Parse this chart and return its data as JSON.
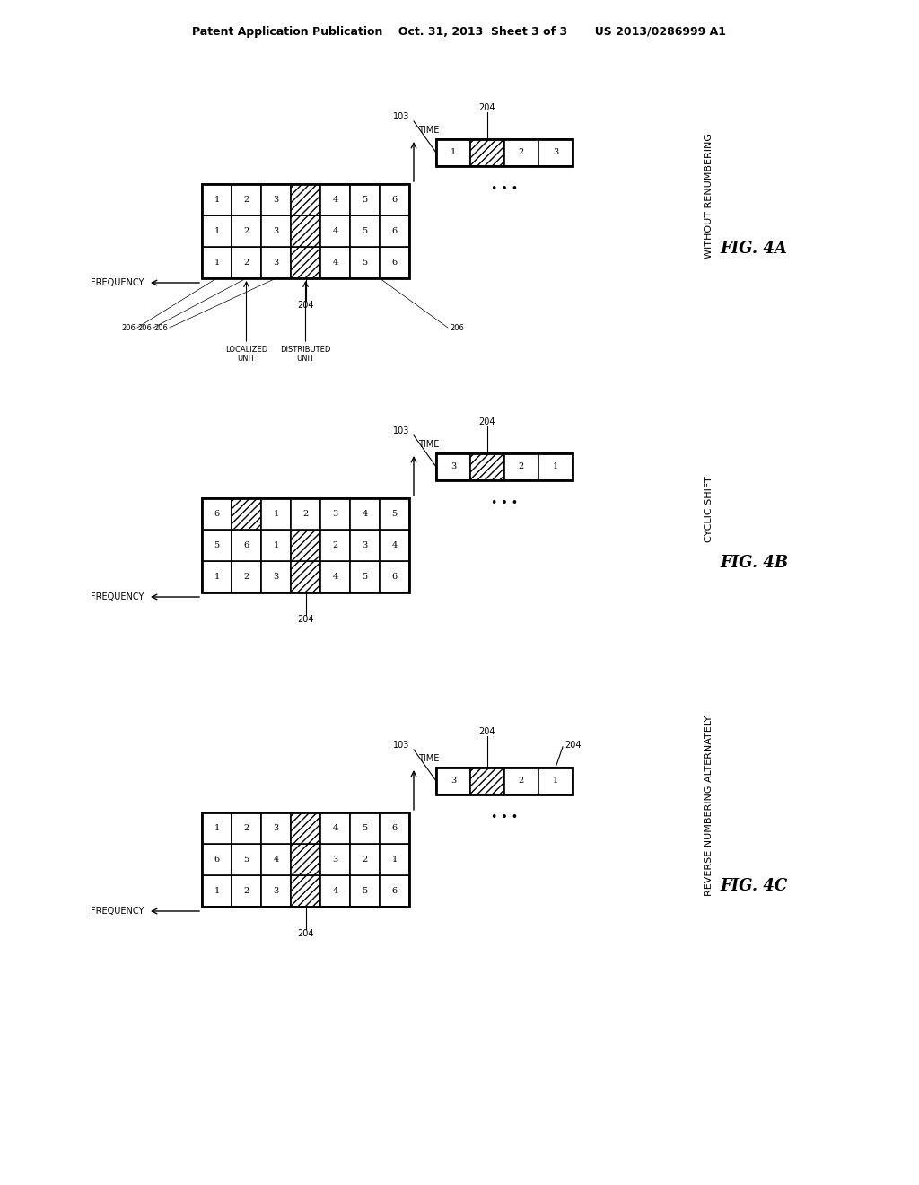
{
  "title_text": "Patent Application Publication    Oct. 31, 2013  Sheet 3 of 3       US 2013/0286999 A1",
  "fig4a_title": "WITHOUT RENUMBERING",
  "fig4a_label": "FIG. 4A",
  "fig4b_title": "CYCLIC SHIFT",
  "fig4b_label": "FIG. 4B",
  "fig4c_title": "REVERSE NUMBERING ALTERNATELY",
  "fig4c_label": "FIG. 4C",
  "background": "#ffffff",
  "note_4a": "Fig 4A: grid is 6freq x 3time; localized=cols 0-2 (plain 1,2,3), distributed=col 3 hatched, cols 4-5 plain 4,5,6. Actually all 3 time rows have same numbering",
  "note_4b": "Fig 4B: cyclic shift. Col0(time1): 1,2,3 plain | hatched col3 | 4,5,6. Col1(time2): distributed shifts. Col2(time3): another shift",
  "note_4c": "Fig 4C: reverse alternate. Time1: 1,2,3 | hatch | 4,5,6. Time2: reversed 6,5,4 | hatch | 3,2,1. Time3: same as time1"
}
